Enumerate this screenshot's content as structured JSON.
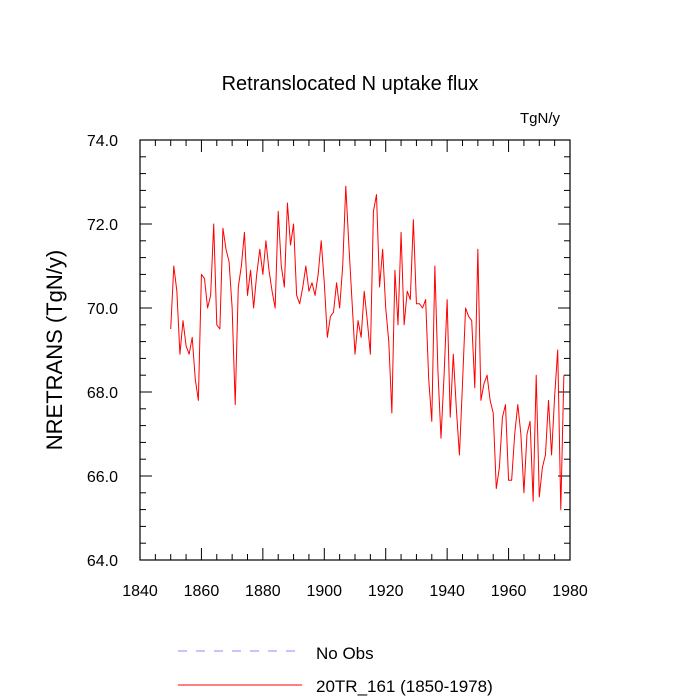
{
  "chart_data": {
    "type": "line",
    "title": "Retranslocated N uptake flux",
    "units": "TgN/y",
    "xlabel": "",
    "ylabel": "NRETRANS  (TgN/y)",
    "xlim": [
      1840,
      1980
    ],
    "ylim": [
      64,
      74
    ],
    "x_ticks": [
      1840,
      1860,
      1880,
      1900,
      1920,
      1940,
      1960,
      1980
    ],
    "x_tick_labels": [
      "1840",
      "1860",
      "1880",
      "1900",
      "1920",
      "1940",
      "1960",
      "1980"
    ],
    "y_ticks": [
      64,
      66,
      68,
      70,
      72,
      74
    ],
    "y_tick_labels": [
      "64.0",
      "66.0",
      "68.0",
      "70.0",
      "72.0",
      "74.0"
    ],
    "grid": false,
    "legend": {
      "placement": "bottom",
      "entries": [
        {
          "label": "No Obs",
          "color": "#8c8cff",
          "dash": "dashed"
        },
        {
          "label": "20TR_161 (1850-1978)",
          "color": "#ff0000",
          "dash": "solid"
        }
      ]
    },
    "series": [
      {
        "name": "20TR_161 (1850-1978)",
        "color": "#ff0000",
        "x": [
          1850,
          1851,
          1852,
          1853,
          1854,
          1855,
          1856,
          1857,
          1858,
          1859,
          1860,
          1861,
          1862,
          1863,
          1864,
          1865,
          1866,
          1867,
          1868,
          1869,
          1870,
          1871,
          1872,
          1873,
          1874,
          1875,
          1876,
          1877,
          1878,
          1879,
          1880,
          1881,
          1882,
          1883,
          1884,
          1885,
          1886,
          1887,
          1888,
          1889,
          1890,
          1891,
          1892,
          1893,
          1894,
          1895,
          1896,
          1897,
          1898,
          1899,
          1900,
          1901,
          1902,
          1903,
          1904,
          1905,
          1906,
          1907,
          1908,
          1909,
          1910,
          1911,
          1912,
          1913,
          1914,
          1915,
          1916,
          1917,
          1918,
          1919,
          1920,
          1921,
          1922,
          1923,
          1924,
          1925,
          1926,
          1927,
          1928,
          1929,
          1930,
          1931,
          1932,
          1933,
          1934,
          1935,
          1936,
          1937,
          1938,
          1939,
          1940,
          1941,
          1942,
          1943,
          1944,
          1945,
          1946,
          1947,
          1948,
          1949,
          1950,
          1951,
          1952,
          1953,
          1954,
          1955,
          1956,
          1957,
          1958,
          1959,
          1960,
          1961,
          1962,
          1963,
          1964,
          1965,
          1966,
          1967,
          1968,
          1969,
          1970,
          1971,
          1972,
          1973,
          1974,
          1975,
          1976,
          1977,
          1978
        ],
        "values": [
          69.5,
          71.0,
          70.4,
          68.9,
          69.7,
          69.1,
          68.9,
          69.3,
          68.3,
          67.8,
          70.8,
          70.7,
          70.0,
          70.3,
          72.0,
          69.6,
          69.5,
          71.9,
          71.4,
          71.1,
          70.0,
          67.7,
          70.5,
          71.0,
          71.8,
          70.3,
          70.9,
          70.0,
          70.8,
          71.4,
          70.8,
          71.6,
          70.9,
          70.4,
          70.0,
          72.3,
          71.0,
          70.5,
          72.5,
          71.5,
          72.0,
          70.3,
          70.1,
          70.5,
          71.0,
          70.4,
          70.6,
          70.3,
          70.8,
          71.6,
          70.6,
          69.3,
          69.8,
          69.9,
          70.6,
          70.0,
          71.0,
          72.9,
          71.5,
          70.2,
          68.9,
          69.7,
          69.3,
          70.4,
          69.7,
          68.9,
          72.3,
          72.7,
          70.5,
          71.4,
          70.0,
          69.2,
          67.5,
          70.9,
          69.6,
          71.8,
          69.6,
          70.4,
          70.2,
          72.1,
          70.1,
          70.1,
          70.0,
          70.2,
          68.3,
          67.3,
          71.0,
          68.5,
          66.9,
          68.4,
          70.2,
          67.4,
          68.9,
          67.6,
          66.5,
          68.2,
          70.0,
          69.8,
          69.7,
          68.1,
          71.4,
          67.8,
          68.2,
          68.4,
          67.8,
          67.5,
          65.7,
          66.2,
          67.4,
          67.7,
          65.9,
          65.9,
          67.0,
          67.7,
          67.0,
          65.6,
          67.0,
          67.3,
          65.4,
          68.4,
          65.5,
          66.2,
          66.5,
          67.8,
          66.5,
          67.9,
          69.0,
          65.2,
          68.4
        ]
      }
    ]
  }
}
